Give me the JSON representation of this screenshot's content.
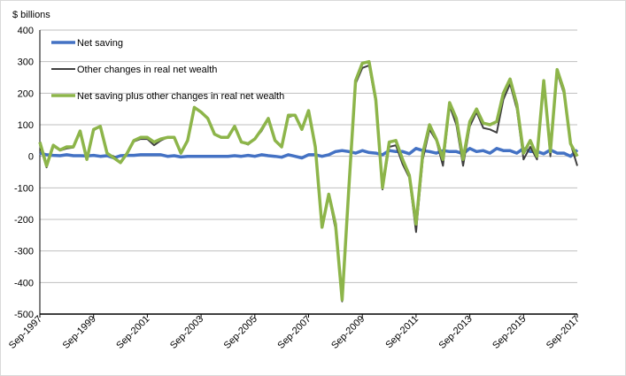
{
  "chart_data": {
    "type": "line",
    "ylabel": "$ billions",
    "ylim": [
      -500,
      400
    ],
    "yticks": [
      400,
      300,
      200,
      100,
      0,
      -100,
      -200,
      -300,
      -400,
      -500
    ],
    "grid": true,
    "legend_placement": "top-left",
    "x_start": "Sep-1997",
    "x_frequency": "quarterly",
    "xtick_labels": [
      "Sep-1997",
      "Sep-1999",
      "Sep-2001",
      "Sep-2003",
      "Sep-2005",
      "Sep-2007",
      "Sep-2009",
      "Sep-2011",
      "Sep-2013",
      "Sep-2015",
      "Sep-2017"
    ],
    "series": [
      {
        "name": "Net saving",
        "color": "#4472c4",
        "values": [
          10,
          5,
          3,
          2,
          5,
          2,
          2,
          1,
          3,
          0,
          2,
          -5,
          2,
          3,
          3,
          5,
          5,
          5,
          5,
          0,
          2,
          -2,
          0,
          0,
          0,
          0,
          0,
          0,
          0,
          2,
          0,
          3,
          0,
          5,
          2,
          0,
          -3,
          5,
          0,
          -5,
          5,
          5,
          0,
          5,
          15,
          18,
          15,
          10,
          18,
          12,
          10,
          5,
          18,
          15,
          15,
          8,
          25,
          18,
          15,
          10,
          18,
          15,
          15,
          8,
          25,
          15,
          18,
          10,
          25,
          18,
          18,
          10,
          25,
          15,
          15,
          8,
          20,
          10,
          10,
          0,
          20
        ]
      },
      {
        "name": "Other changes in real net wealth",
        "color": "#404040",
        "values": [
          35,
          -35,
          32,
          18,
          25,
          28,
          78,
          -11,
          82,
          95,
          8,
          0,
          -22,
          7,
          47,
          55,
          55,
          35,
          50,
          60,
          58,
          12,
          50,
          155,
          140,
          120,
          70,
          60,
          60,
          93,
          45,
          37,
          55,
          80,
          118,
          50,
          33,
          125,
          130,
          90,
          140,
          25,
          -225,
          -125,
          -230,
          -460,
          -115,
          230,
          280,
          288,
          170,
          -105,
          30,
          35,
          -25,
          -68,
          -240,
          -10,
          85,
          50,
          -30,
          160,
          100,
          -30,
          95,
          140,
          90,
          85,
          75,
          180,
          230,
          150,
          -10,
          30,
          -10,
          232,
          0,
          265,
          200,
          40,
          -30
        ]
      },
      {
        "name": "Net saving plus other changes in real net wealth",
        "color": "#8db54a",
        "values": [
          45,
          -30,
          35,
          20,
          30,
          30,
          80,
          -10,
          85,
          95,
          10,
          -5,
          -20,
          10,
          50,
          60,
          60,
          45,
          55,
          60,
          60,
          10,
          50,
          155,
          140,
          120,
          70,
          60,
          60,
          95,
          45,
          40,
          55,
          85,
          120,
          50,
          30,
          130,
          130,
          85,
          145,
          30,
          -225,
          -120,
          -215,
          -455,
          -100,
          240,
          295,
          300,
          180,
          -100,
          45,
          50,
          -10,
          -60,
          -215,
          10,
          100,
          55,
          -10,
          170,
          120,
          -10,
          110,
          150,
          105,
          100,
          110,
          200,
          245,
          165,
          10,
          50,
          0,
          240,
          15,
          275,
          210,
          40,
          0
        ]
      }
    ]
  }
}
